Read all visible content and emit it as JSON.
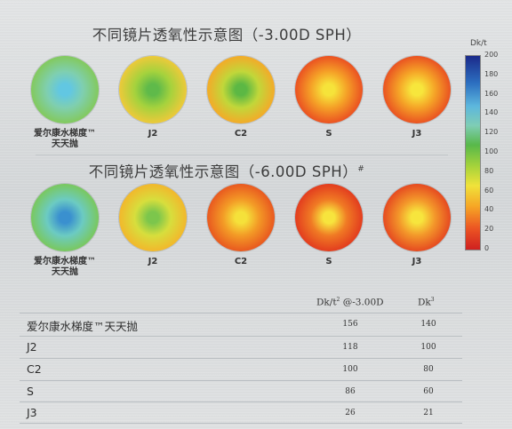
{
  "section1": {
    "title": "不同镜片透氧性示意图（-3.00D SPH）",
    "lenses": [
      {
        "label_line1": "爱尔康水梯度™",
        "label_line2": "天天抛",
        "colors": [
          "#62c7e2",
          "#7fcfb0",
          "#83c95a",
          "#4aa6d6"
        ]
      },
      {
        "label_line1": "J2",
        "label_line2": "",
        "colors": [
          "#5fba4a",
          "#a5d23d",
          "#f0c93a",
          "#f3d23b"
        ]
      },
      {
        "label_line1": "C2",
        "label_line2": "",
        "colors": [
          "#5cb844",
          "#c1d73a",
          "#f5a928",
          "#ef6a25"
        ]
      },
      {
        "label_line1": "S",
        "label_line2": "",
        "colors": [
          "#f6e33a",
          "#f5a127",
          "#ea4e21",
          "#e43a1f"
        ]
      },
      {
        "label_line1": "J3",
        "label_line2": "",
        "colors": [
          "#f7e63c",
          "#f5a427",
          "#e94f21",
          "#e23b1f"
        ]
      }
    ]
  },
  "section2": {
    "title": "不同镜片透氧性示意图（-6.00D SPH）",
    "title_mark": "#",
    "lenses": [
      {
        "label_line1": "爱尔康水梯度™",
        "label_line2": "天天抛",
        "colors": [
          "#3a90cf",
          "#6ccbc2",
          "#7ac85a",
          "#4aa6d6"
        ]
      },
      {
        "label_line1": "J2",
        "label_line2": "",
        "colors": [
          "#7cc64c",
          "#d7de3d",
          "#f3b62b",
          "#f1c43a"
        ]
      },
      {
        "label_line1": "C2",
        "label_line2": "",
        "colors": [
          "#f5e13a",
          "#f39a26",
          "#e8561f",
          "#ec7a25"
        ]
      },
      {
        "label_line1": "S",
        "label_line2": "",
        "colors": [
          "#f7e43d",
          "#f07a24",
          "#e23a1e",
          "#e0381e"
        ]
      },
      {
        "label_line1": "J3",
        "label_line2": "",
        "colors": [
          "#f7e53d",
          "#f3972a",
          "#e54720",
          "#e33d1f"
        ]
      }
    ]
  },
  "colorbar": {
    "unit": "Dk/t",
    "ticks": [
      "200",
      "180",
      "160",
      "140",
      "120",
      "100",
      "80",
      "60",
      "40",
      "20",
      "0"
    ]
  },
  "table": {
    "header_col1": "Dk/t",
    "header_col1_sup": "2",
    "header_col1_suffix": " @-3.00D",
    "header_col2": "Dk",
    "header_col2_sup": "3",
    "rows": [
      {
        "name": "爱尔康水梯度™天天抛",
        "dkt": "156",
        "dk": "140"
      },
      {
        "name": "J2",
        "dkt": "118",
        "dk": "100"
      },
      {
        "name": "C2",
        "dkt": "100",
        "dk": "80"
      },
      {
        "name": "S",
        "dkt": "86",
        "dk": "60"
      },
      {
        "name": "J3",
        "dkt": "26",
        "dk": "21"
      }
    ]
  }
}
